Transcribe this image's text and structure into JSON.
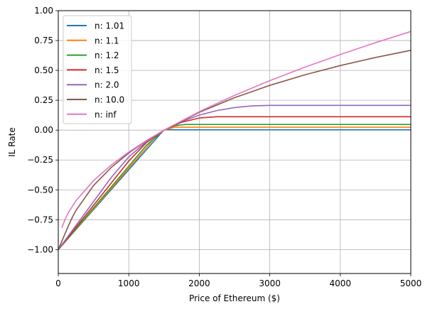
{
  "chart_data": {
    "type": "line",
    "title": "",
    "xlabel": "Price of Ethereum ($)",
    "ylabel": "IL Rate",
    "xlim": [
      0,
      5000
    ],
    "ylim": [
      -1.2,
      1.0
    ],
    "grid": true,
    "legend_position": "top-left",
    "x_ticks": [
      0,
      1000,
      2000,
      3000,
      4000,
      5000
    ],
    "x_tick_labels": [
      "0",
      "1000",
      "2000",
      "3000",
      "4000",
      "5000"
    ],
    "y_ticks": [
      -1.0,
      -0.75,
      -0.5,
      -0.25,
      0.0,
      0.25,
      0.5,
      0.75,
      1.0
    ],
    "y_tick_labels": [
      "−1.00",
      "−0.75",
      "−0.50",
      "−0.25",
      "0.00",
      "0.25",
      "0.50",
      "0.75",
      "1.00"
    ],
    "series": [
      {
        "name": "n: 1.01",
        "color": "#1f77b4",
        "x": [
          0,
          1485,
          1500,
          1515,
          5000
        ],
        "y": [
          -1,
          -0.007,
          0,
          0.003,
          0.003
        ]
      },
      {
        "name": "n: 1.1",
        "color": "#ff7f0e",
        "x": [
          0,
          1363.6,
          1500,
          1650,
          5000
        ],
        "y": [
          -1,
          -0.0687,
          0,
          0.0244,
          0.0244
        ]
      },
      {
        "name": "n: 1.2",
        "color": "#2ca02c",
        "x": [
          0,
          1250,
          1500,
          1650,
          1800,
          5000
        ],
        "y": [
          -1,
          -0.1269,
          0,
          0.0363,
          0.0477,
          0.0477
        ]
      },
      {
        "name": "n: 1.5",
        "color": "#d62728",
        "x": [
          0,
          1000,
          1250,
          1500,
          1750,
          2000,
          2250,
          5000
        ],
        "y": [
          -1,
          -0.2584,
          -0.104,
          0,
          0.0659,
          0.1015,
          0.1124,
          0.1124
        ]
      },
      {
        "name": "n: 2.0",
        "color": "#9467bd",
        "x": [
          0,
          750,
          1000,
          1250,
          1500,
          1750,
          2000,
          2250,
          2500,
          2750,
          3000,
          5000
        ],
        "y": [
          -1,
          -0.3964,
          -0.2242,
          -0.0963,
          0,
          0.0724,
          0.1258,
          0.1638,
          0.1888,
          0.2027,
          0.2071,
          0.2071
        ]
      },
      {
        "name": "n: 10.0",
        "color": "#8c564b",
        "x": [
          0,
          150,
          200,
          250,
          500,
          750,
          1000,
          1250,
          1500,
          2000,
          2500,
          3000,
          3500,
          4000,
          4500,
          5000
        ],
        "y": [
          -1,
          -0.7919,
          -0.728,
          -0.6727,
          -0.464,
          -0.3127,
          -0.1913,
          -0.0889,
          0,
          0.1492,
          0.2714,
          0.3746,
          0.4632,
          0.5404,
          0.6081,
          0.6681
        ]
      },
      {
        "name": "n: inf",
        "color": "#e377c2",
        "x": [
          50,
          100,
          150,
          250,
          500,
          750,
          1000,
          1250,
          1500,
          2000,
          2500,
          3000,
          3500,
          4000,
          4500,
          5000
        ],
        "y": [
          -0.8174,
          -0.7418,
          -0.6838,
          -0.5918,
          -0.4226,
          -0.2929,
          -0.1835,
          -0.0871,
          0,
          0.1547,
          0.291,
          0.4142,
          0.5275,
          0.633,
          0.7321,
          0.8257
        ]
      }
    ]
  }
}
